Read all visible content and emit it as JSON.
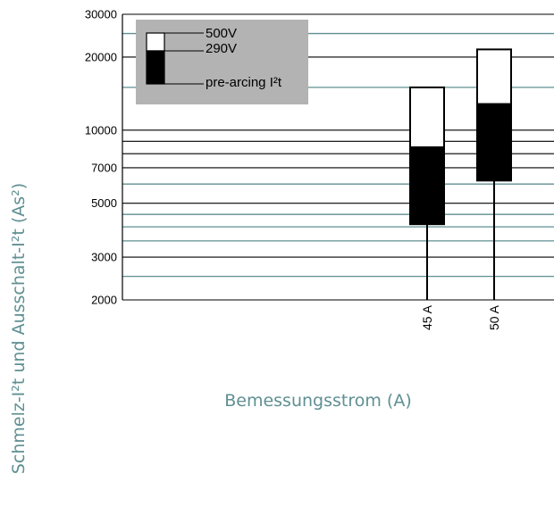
{
  "chart_data": {
    "type": "bar",
    "scale": "log",
    "ylim": [
      2000,
      30000
    ],
    "yticks": [
      "2000",
      "3000",
      "5000",
      "7000",
      "10000",
      "20000",
      "30000"
    ],
    "ytick_values": [
      2000,
      3000,
      5000,
      7000,
      10000,
      20000,
      30000
    ],
    "gridlines": [
      2000,
      2500,
      3000,
      3500,
      4000,
      4500,
      5000,
      6000,
      7000,
      8000,
      9000,
      10000,
      15000,
      20000,
      25000,
      30000
    ],
    "categories": [
      "45 A",
      "50 A"
    ],
    "series": [
      {
        "name": "500V",
        "values": [
          15000,
          21500
        ]
      },
      {
        "name": "290V",
        "values": [
          8500,
          12800
        ]
      },
      {
        "name": "pre-arcing I²t",
        "values": [
          4100,
          6200
        ]
      }
    ],
    "legend": {
      "position": "top-left",
      "background": "#b3b3b3"
    },
    "xlabel": "Bemessungsstrom (A)",
    "ylabel": "Schmelz-I²t und Ausschalt-I²t (As²)",
    "colors": {
      "axis_title": "#5f8f92",
      "grid_dark": "#000000",
      "grid_teal": "#5f8f92",
      "fill_500v": "#ffffff",
      "fill_290v": "#000000"
    }
  }
}
